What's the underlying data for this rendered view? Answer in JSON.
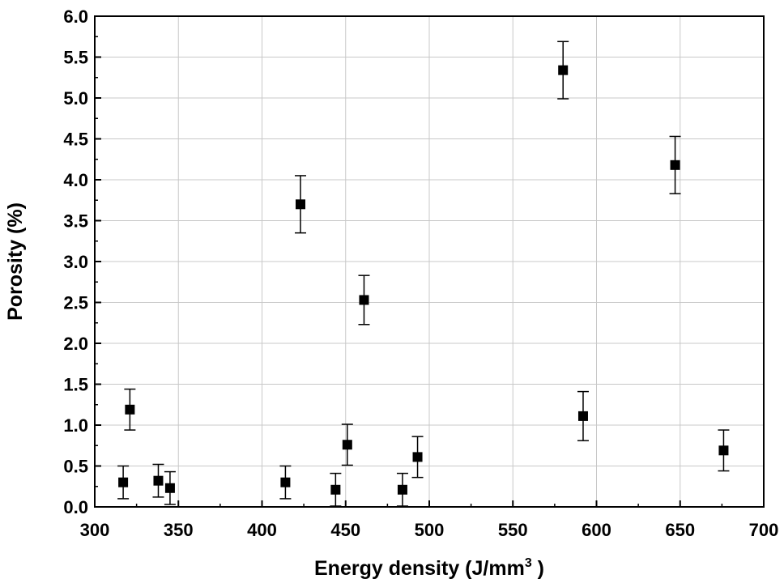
{
  "chart_data": {
    "type": "scatter",
    "xlabel": "Energy density (J/mm",
    "xlabel_sup": "3",
    "xlabel_end": " )",
    "ylabel": "Porosity (%)",
    "xlim": [
      300,
      700
    ],
    "ylim": [
      0,
      6
    ],
    "x_ticks": [
      "300",
      "350",
      "400",
      "450",
      "500",
      "550",
      "600",
      "650",
      "700"
    ],
    "y_ticks": [
      "0.0",
      "0.5",
      "1.0",
      "1.5",
      "2.0",
      "2.5",
      "3.0",
      "3.5",
      "4.0",
      "4.5",
      "5.0",
      "5.5",
      "6.0"
    ],
    "grid": true,
    "marker": "filled-square",
    "color": "#000000",
    "points": [
      {
        "x": 317,
        "y": 0.3,
        "err": 0.2
      },
      {
        "x": 321,
        "y": 1.19,
        "err": 0.25
      },
      {
        "x": 338,
        "y": 0.32,
        "err": 0.2
      },
      {
        "x": 345,
        "y": 0.23,
        "err": 0.2
      },
      {
        "x": 414,
        "y": 0.3,
        "err": 0.2
      },
      {
        "x": 423,
        "y": 3.7,
        "err": 0.35
      },
      {
        "x": 444,
        "y": 0.21,
        "err": 0.2
      },
      {
        "x": 451,
        "y": 0.76,
        "err": 0.25
      },
      {
        "x": 461,
        "y": 2.53,
        "err": 0.3
      },
      {
        "x": 484,
        "y": 0.21,
        "err": 0.2
      },
      {
        "x": 493,
        "y": 0.61,
        "err": 0.25
      },
      {
        "x": 580,
        "y": 5.34,
        "err": 0.35
      },
      {
        "x": 592,
        "y": 1.11,
        "err": 0.3
      },
      {
        "x": 647,
        "y": 4.18,
        "err": 0.35
      },
      {
        "x": 676,
        "y": 0.69,
        "err": 0.25
      }
    ]
  }
}
